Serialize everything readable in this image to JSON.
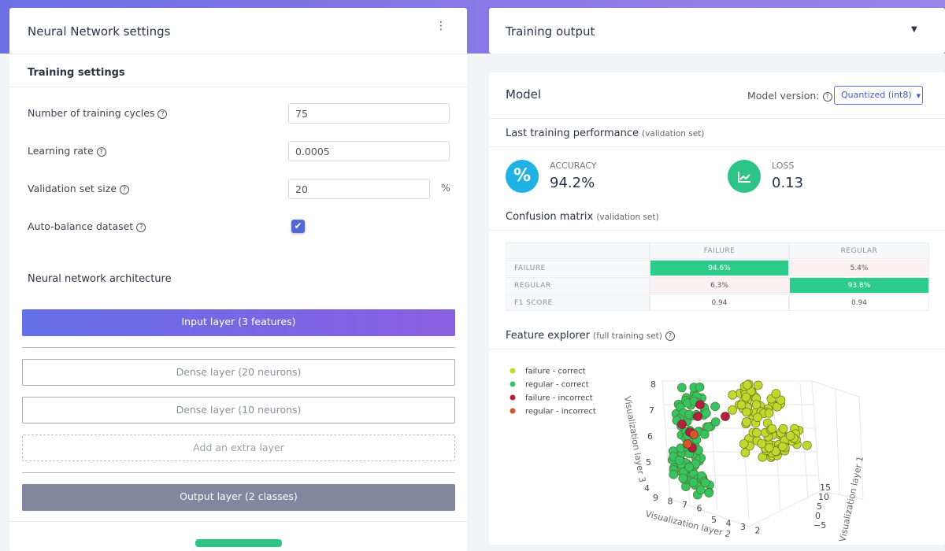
{
  "left_panel": {
    "title": "Neural Network settings",
    "training_settings": {
      "heading": "Training settings",
      "fields": [
        {
          "label": "Number of training cycles",
          "value": "75"
        },
        {
          "label": "Learning rate",
          "value": "0.0005"
        },
        {
          "label": "Validation set size",
          "value": "20",
          "unit": "%"
        },
        {
          "label": "Auto-balance dataset"
        }
      ]
    },
    "architecture": {
      "heading": "Neural network architecture",
      "layers": [
        "Input layer (3 features)",
        "Dense layer (20 neurons)",
        "Dense layer (10 neurons)",
        "Add an extra layer",
        "Output layer (2 classes)"
      ]
    }
  },
  "right_panel": {
    "title": "Training output",
    "model": {
      "title": "Model",
      "version_label": "Model version:",
      "version": "Quantized (int8)",
      "performance_heading": "Last training performance",
      "performance_note": "(validation set)",
      "metrics": [
        {
          "name": "ACCURACY",
          "value": "94.2%"
        },
        {
          "name": "LOSS",
          "value": "0.13"
        }
      ],
      "confusion": {
        "heading": "Confusion matrix",
        "note": "(validation set)",
        "columns": [
          "FAILURE",
          "REGULAR"
        ],
        "rows": [
          {
            "label": "FAILURE",
            "cells": [
              "94.6%",
              "5.4%"
            ]
          },
          {
            "label": "REGULAR",
            "cells": [
              "6.3%",
              "93.8%"
            ]
          },
          {
            "label": "F1 SCORE",
            "cells": [
              "0.94",
              "0.94"
            ]
          }
        ]
      },
      "explorer": {
        "heading": "Feature explorer",
        "note": "(full training set)",
        "legend": [
          "failure - correct",
          "regular - correct",
          "failure - incorrect",
          "regular - incorrect"
        ],
        "axis_z_title": "Visualization layer 3",
        "axis_z_ticks": [
          "8",
          "7",
          "6",
          "5",
          "4"
        ],
        "axis_x_title": "Visualization layer 2",
        "axis_x_ticks": [
          "9",
          "8",
          "7",
          "6",
          "5",
          "4",
          "3",
          "2"
        ],
        "axis_y_title": "Visualization layer 1",
        "axis_y_ticks": [
          "15",
          "10",
          "5",
          "0",
          "−5"
        ]
      }
    }
  }
}
